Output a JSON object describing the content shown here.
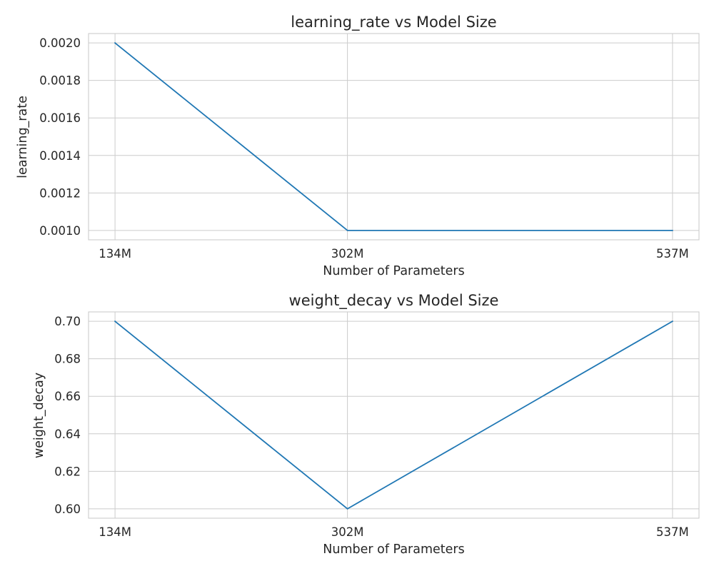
{
  "chart_data": [
    {
      "type": "line",
      "title": "learning_rate vs Model Size",
      "xlabel": "Number of Parameters",
      "ylabel": "learning_rate",
      "categories": [
        "134M",
        "302M",
        "537M"
      ],
      "x": [
        134,
        302,
        537
      ],
      "x_unit": "M",
      "values": [
        0.002,
        0.001,
        0.001
      ],
      "yticks": [
        "0.0010",
        "0.0012",
        "0.0014",
        "0.0016",
        "0.0018",
        "0.0020"
      ],
      "ylim": [
        0.00095,
        0.00205
      ],
      "xlim": [
        114.85,
        556.15
      ],
      "grid": true,
      "color": "#1f77b4"
    },
    {
      "type": "line",
      "title": "weight_decay vs Model Size",
      "xlabel": "Number of Parameters",
      "ylabel": "weight_decay",
      "categories": [
        "134M",
        "302M",
        "537M"
      ],
      "x": [
        134,
        302,
        537
      ],
      "x_unit": "M",
      "values": [
        0.7,
        0.6,
        0.7
      ],
      "yticks": [
        "0.60",
        "0.62",
        "0.64",
        "0.66",
        "0.68",
        "0.70"
      ],
      "ylim": [
        0.595,
        0.705
      ],
      "xlim": [
        114.85,
        556.15
      ],
      "grid": true,
      "color": "#1f77b4"
    }
  ]
}
